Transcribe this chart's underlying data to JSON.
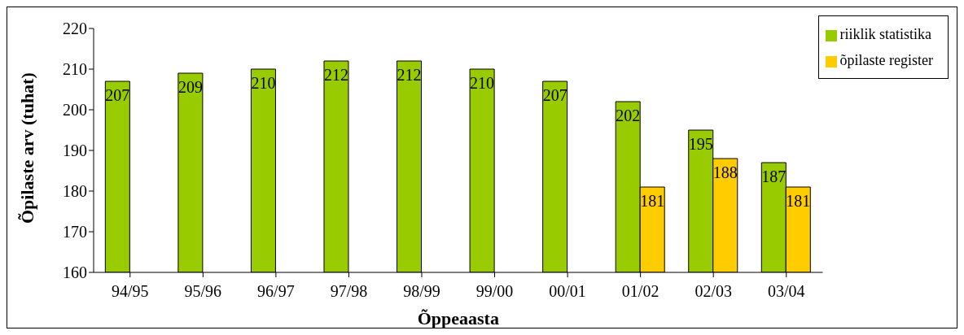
{
  "chart_data": {
    "type": "bar",
    "xlabel": "Õppeaasta",
    "ylabel": "Õpilaste arv (tuhat)",
    "categories": [
      "94/95",
      "95/96",
      "96/97",
      "97/98",
      "98/99",
      "99/00",
      "00/01",
      "01/02",
      "02/03",
      "03/04"
    ],
    "series": [
      {
        "name": "riiklik statistika",
        "color": "#99cc00",
        "values": [
          207,
          209,
          210,
          212,
          212,
          210,
          207,
          202,
          195,
          187
        ]
      },
      {
        "name": "õpilaste register",
        "color": "#ffcc00",
        "values": [
          null,
          null,
          null,
          null,
          null,
          null,
          null,
          181,
          188,
          181
        ]
      }
    ],
    "ylim": [
      160,
      220
    ],
    "yticks": [
      160,
      170,
      180,
      190,
      200,
      210,
      220
    ],
    "grid": false,
    "legend": "top right",
    "data_labels": true
  }
}
